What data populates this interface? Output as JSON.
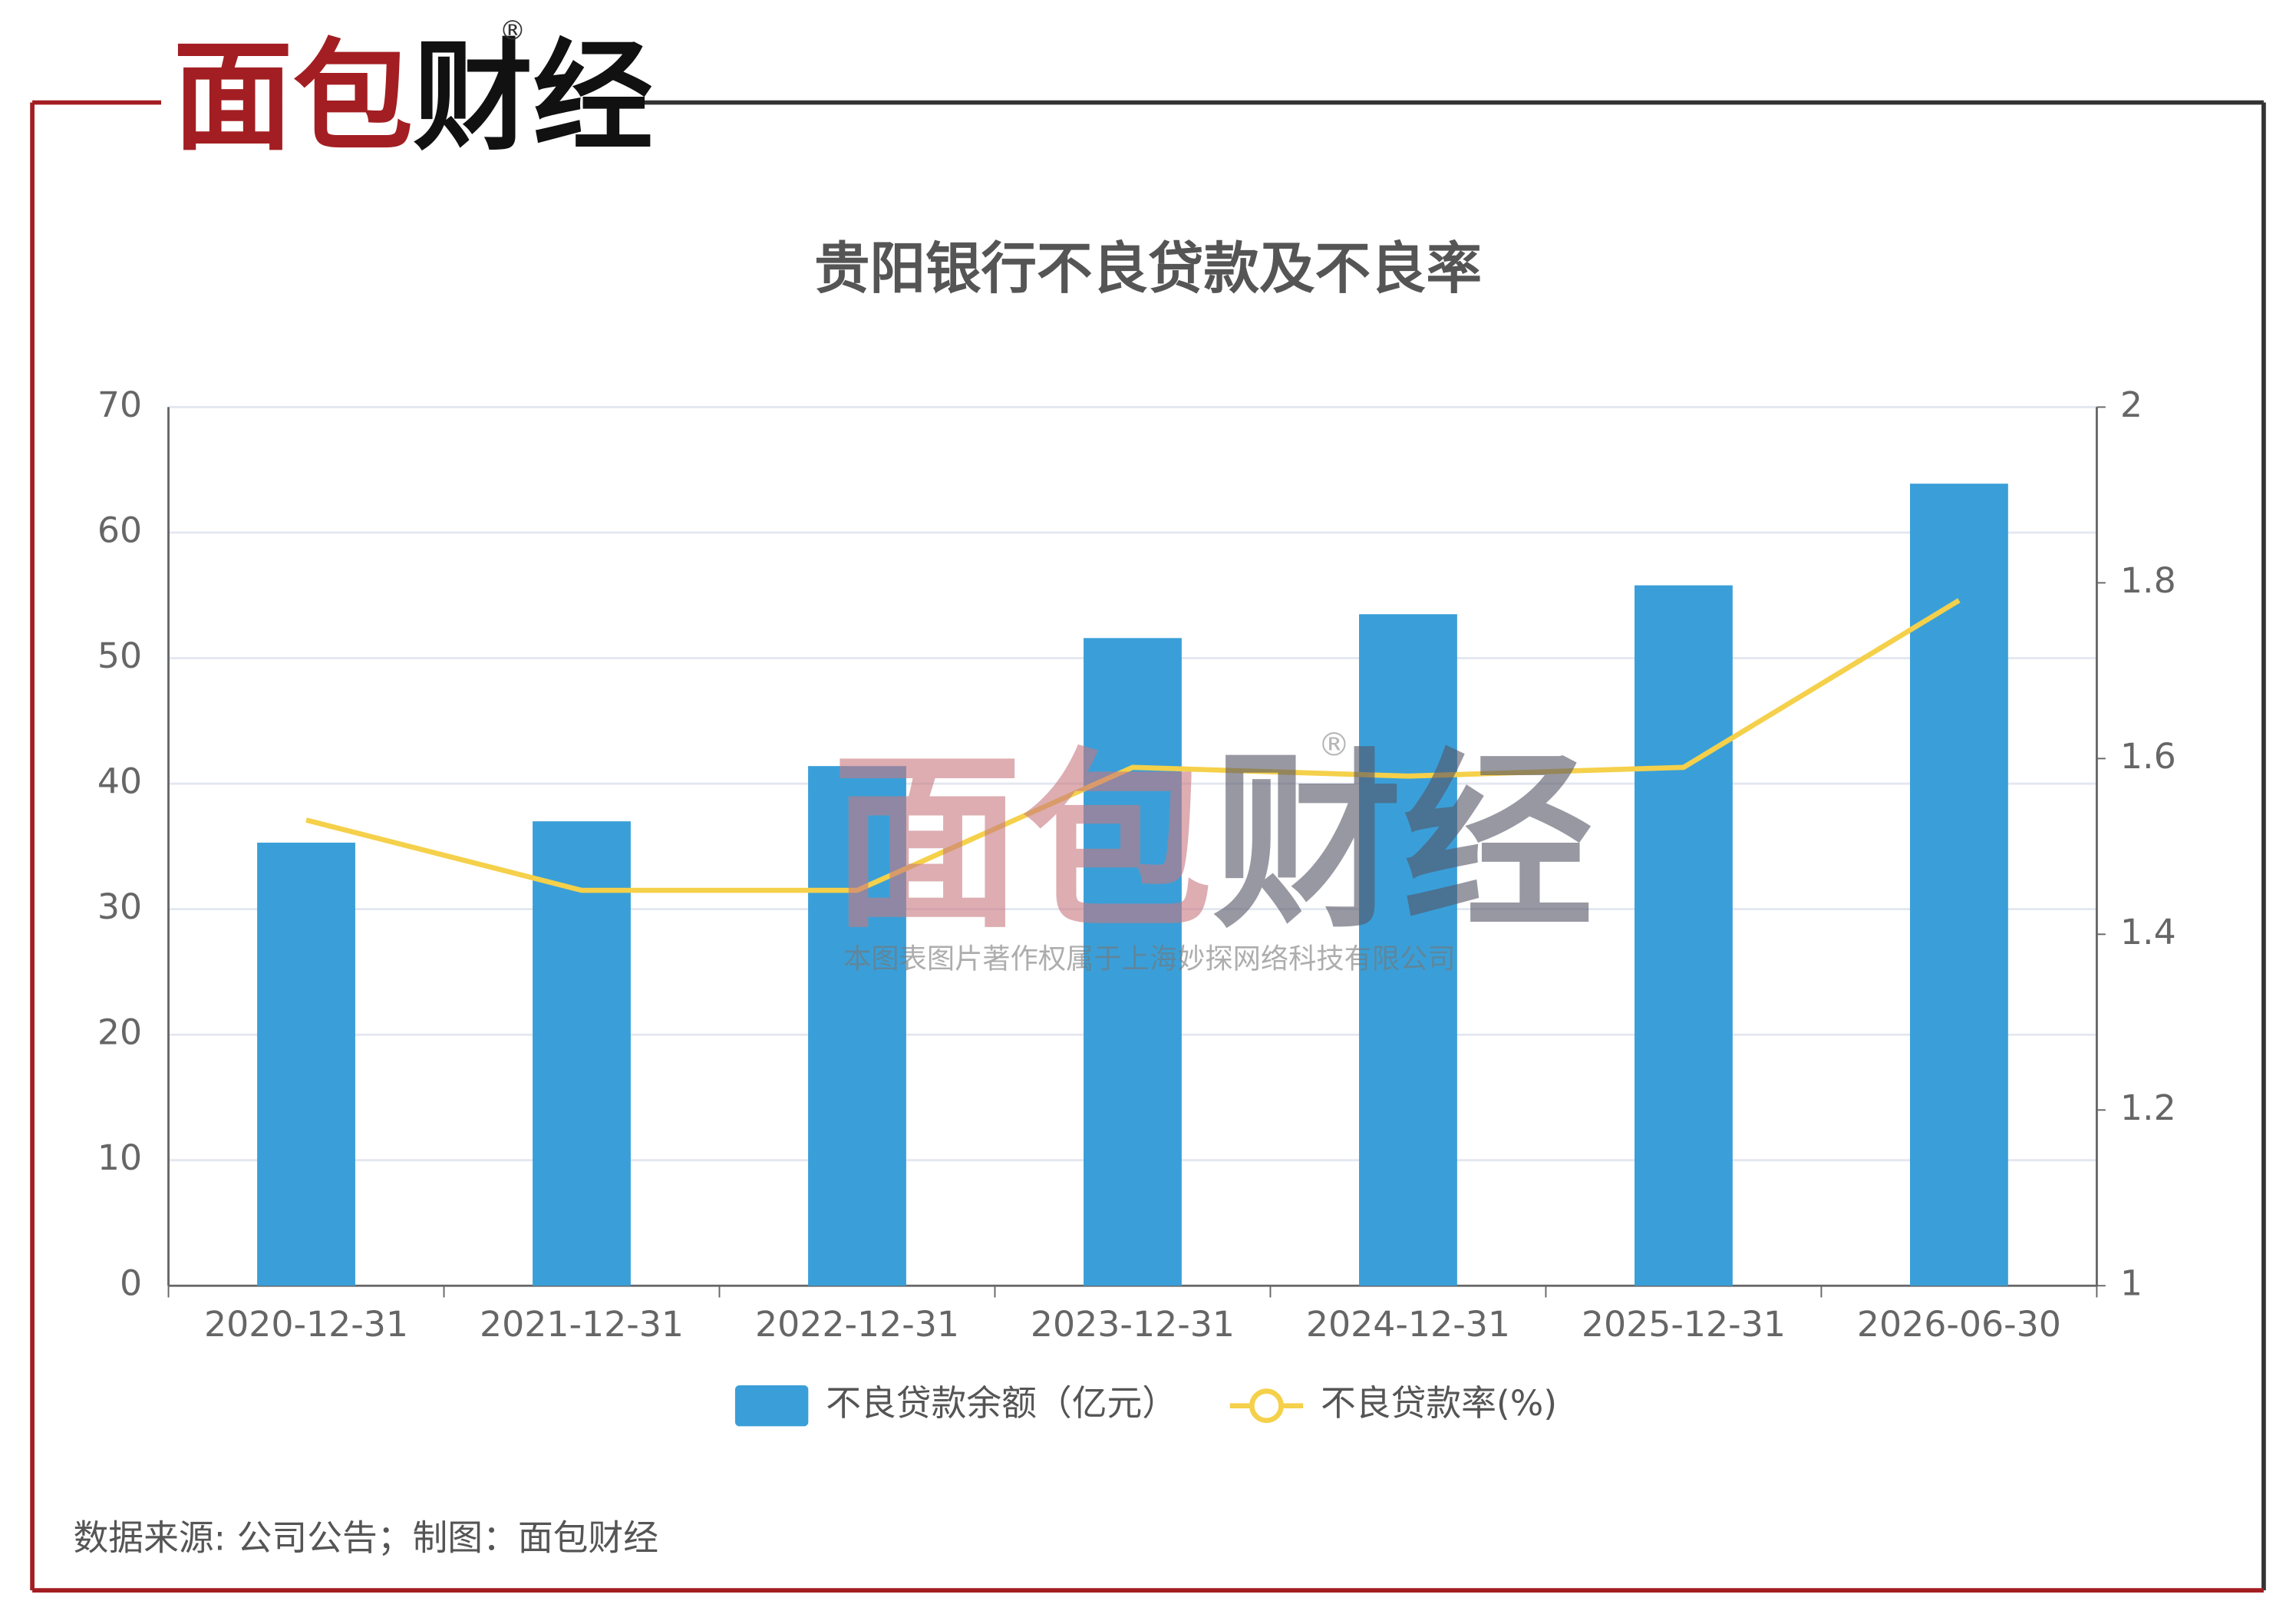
{
  "logo": {
    "red": "面包",
    "black": "财经",
    "mark": "®"
  },
  "watermark": {
    "red": "面包",
    "black": "财经",
    "mark": "®",
    "text": "本图表图片著作权属于上海妙探网络科技有限公司"
  },
  "footer": "数据来源: 公司公告；制图：面包财经",
  "chart_data": {
    "type": "bar",
    "title": "贵阳银行不良贷款及不良率",
    "categories": [
      "2020-12-31",
      "2021-12-31",
      "2022-12-31",
      "2023-12-31",
      "2024-12-31",
      "2025-12-31",
      "2026-06-30"
    ],
    "series": [
      {
        "name": "不良贷款余额（亿元）",
        "type": "bar",
        "color": "#3a9fd8",
        "values": [
          35.3,
          37,
          41.4,
          51.6,
          53.5,
          55.8,
          63.9
        ]
      },
      {
        "name": "不良贷款率(%)",
        "type": "line",
        "axis": "y2",
        "color": "#f5d04a",
        "values": [
          1.53,
          1.45,
          1.45,
          1.59,
          1.58,
          1.59,
          1.78
        ]
      }
    ],
    "ylim": [
      0,
      70
    ],
    "yticks": [
      0,
      10,
      20,
      30,
      40,
      50,
      60,
      70
    ],
    "y2lim": [
      1,
      2
    ],
    "y2ticks": [
      1,
      1.2,
      1.4,
      1.6,
      1.8,
      2
    ],
    "grid": true,
    "legend": "bottom"
  }
}
